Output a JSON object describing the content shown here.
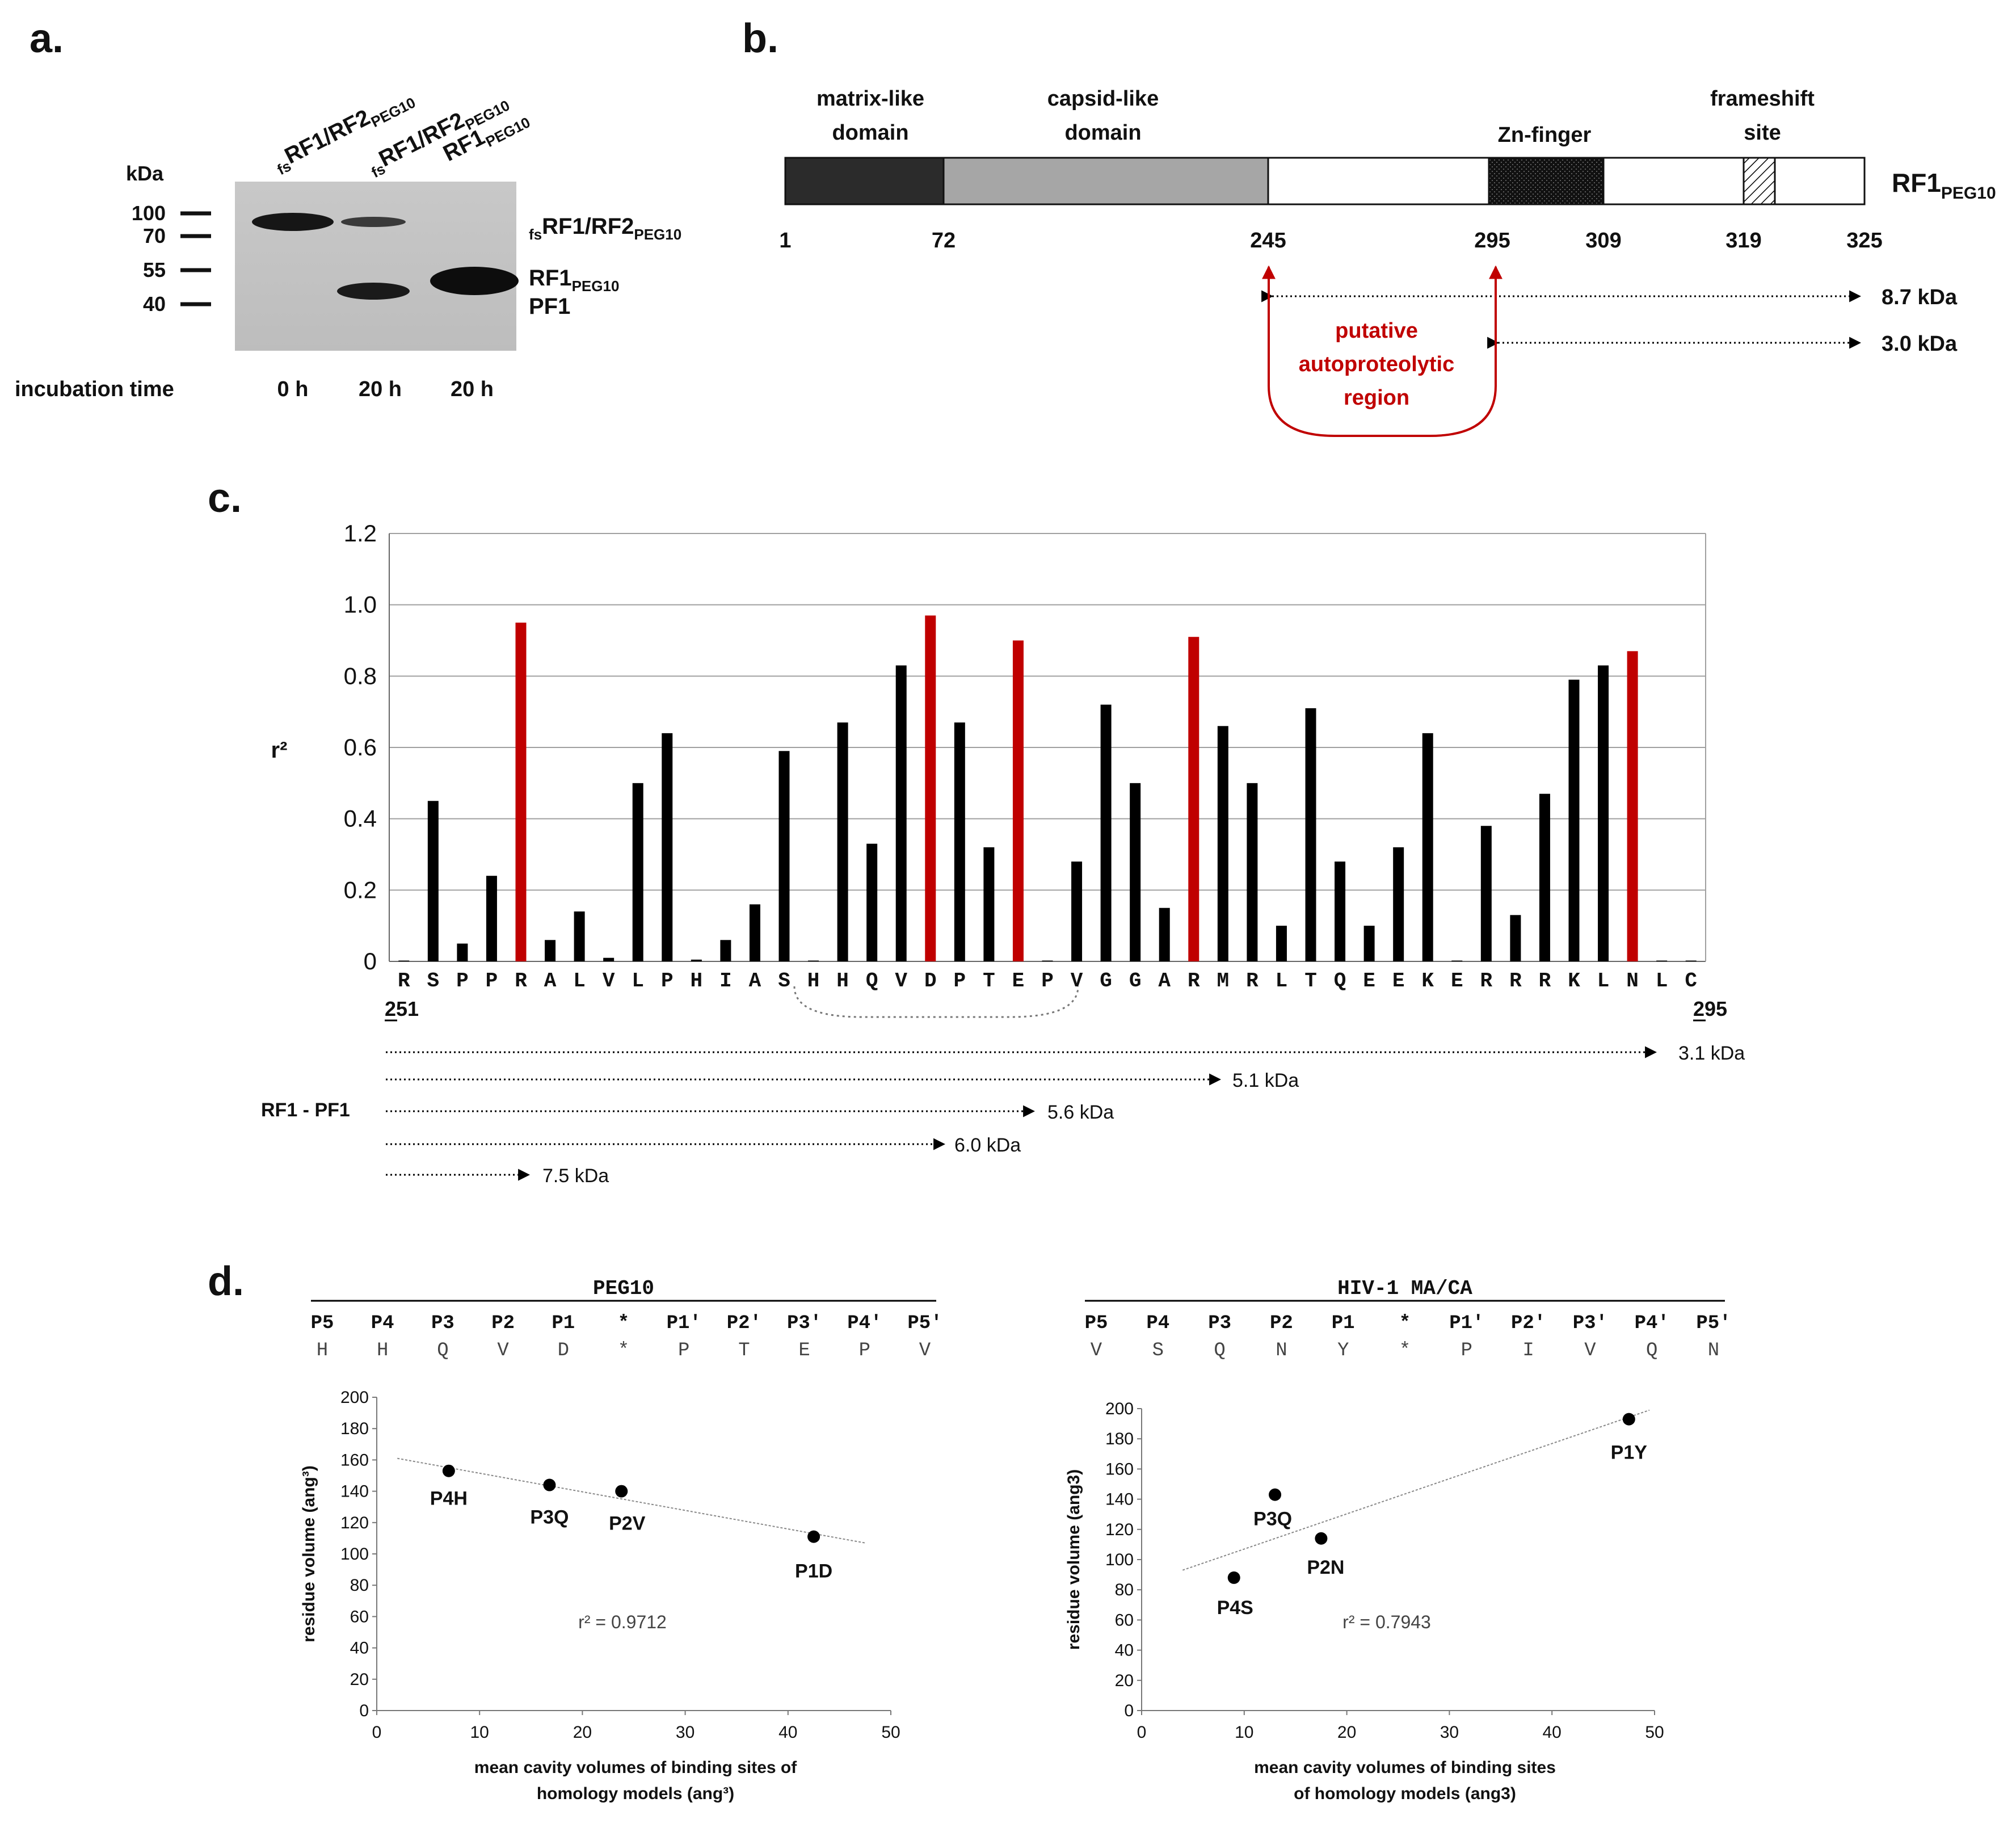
{
  "panel_a": {
    "label": "a.",
    "lanes": [
      {
        "label": "RF1/RF2",
        "pre": "fs",
        "sub": "PEG10"
      },
      {
        "label": "RF1/RF2",
        "pre": "fs",
        "sub": "PEG10"
      },
      {
        "label": "RF1",
        "pre": "",
        "sub": "PEG10"
      }
    ],
    "kda_label": "kDa",
    "markers": [
      "100",
      "70",
      "55",
      "40"
    ],
    "band_labels": [
      {
        "pre": "fs",
        "text": "RF1/RF2",
        "sub": "PEG10"
      },
      {
        "pre": "",
        "text": "RF1",
        "sub": "PEG10"
      },
      {
        "pre": "",
        "text": "PF1",
        "sub": ""
      }
    ],
    "incubation_label": "incubation time",
    "times": [
      "0 h",
      "20 h",
      "20 h"
    ]
  },
  "panel_b": {
    "label": "b.",
    "domains": [
      {
        "name_line1": "matrix-like",
        "name_line2": "domain"
      },
      {
        "name_line1": "capsid-like",
        "name_line2": "domain"
      },
      {
        "name_line1": "Zn-finger",
        "name_line2": ""
      },
      {
        "name_line1": "frameshift",
        "name_line2": "site"
      }
    ],
    "protein": {
      "text": "RF1",
      "sub": "PEG10"
    },
    "positions": [
      "1",
      "72",
      "245",
      "295",
      "309",
      "319",
      "325"
    ],
    "fragments": [
      "8.7 kDa",
      "3.0 kDa"
    ],
    "putative": [
      "putative",
      "autoproteolytic",
      "region"
    ],
    "colors": {
      "matrix": "#2b2b2b",
      "capsid": "#a6a6a6",
      "highlight": "#c00000"
    }
  },
  "panel_c": {
    "label": "c.",
    "start_label": "251",
    "end_label": "295",
    "rf_label": "RF1 - PF1",
    "fragments": [
      "3.1 kDa",
      "5.1 kDa",
      "5.6 kDa",
      "6.0 kDa",
      "7.5 kDa"
    ]
  },
  "chart_data": [
    {
      "type": "bar",
      "ylabel": "r²",
      "ylim": [
        0,
        1.2
      ],
      "yticks": [
        "0",
        "0.2",
        "0.4",
        "0.6",
        "0.8",
        "1.0",
        "1.2"
      ],
      "categories": [
        "R",
        "S",
        "P",
        "P",
        "R",
        "A",
        "L",
        "V",
        "L",
        "P",
        "H",
        "I",
        "A",
        "S",
        "H",
        "H",
        "Q",
        "V",
        "D",
        "P",
        "T",
        "E",
        "P",
        "V",
        "G",
        "G",
        "A",
        "R",
        "M",
        "R",
        "L",
        "T",
        "Q",
        "E",
        "E",
        "K",
        "E",
        "R",
        "R",
        "R",
        "K",
        "L",
        "N",
        "L",
        "C"
      ],
      "values": [
        0,
        0.45,
        0.05,
        0.24,
        0.95,
        0.06,
        0.14,
        0.01,
        0.5,
        0.64,
        0.005,
        0.06,
        0.16,
        0.59,
        0,
        0.67,
        0.33,
        0.83,
        0.97,
        0.67,
        0.32,
        0.9,
        0,
        0.28,
        0.72,
        0.5,
        0.15,
        0.91,
        0.66,
        0.5,
        0.1,
        0.71,
        0.28,
        0.1,
        0.32,
        0.64,
        0,
        0.38,
        0.13,
        0.47,
        0.79,
        0.83,
        0.87,
        0,
        0
      ],
      "highlight_indices": [
        4,
        18,
        21,
        27,
        42
      ],
      "colors": {
        "normal": "#000000",
        "highlight": "#c00000"
      }
    },
    {
      "type": "scatter",
      "title": "PEG10",
      "positions": [
        "P5",
        "P4",
        "P3",
        "P2",
        "P1",
        "*",
        "P1'",
        "P2'",
        "P3'",
        "P4'",
        "P5'"
      ],
      "residues": [
        "H",
        "H",
        "Q",
        "V",
        "D",
        "*",
        "P",
        "T",
        "E",
        "P",
        "V"
      ],
      "xlabel_line1": "mean cavity volumes of binding sites of",
      "xlabel_line2": "homology models (ang³)",
      "ylabel": "residue volume (ang³)",
      "xlim": [
        0,
        50
      ],
      "ylim": [
        0,
        200
      ],
      "xticks": [
        "0",
        "10",
        "20",
        "30",
        "40",
        "50"
      ],
      "yticks": [
        "0",
        "20",
        "40",
        "60",
        "80",
        "100",
        "120",
        "140",
        "160",
        "180",
        "200"
      ],
      "points": [
        {
          "label": "P4H",
          "x": 7,
          "y": 153
        },
        {
          "label": "P3Q",
          "x": 16.8,
          "y": 144
        },
        {
          "label": "P2V",
          "x": 23.8,
          "y": 140
        },
        {
          "label": "P1D",
          "x": 42.5,
          "y": 111
        }
      ],
      "fit": {
        "x1": 2,
        "y1": 161,
        "x2": 47.5,
        "y2": 107
      },
      "r2_label": "r² = 0.9712"
    },
    {
      "type": "scatter",
      "title": "HIV-1 MA/CA",
      "positions": [
        "P5",
        "P4",
        "P3",
        "P2",
        "P1",
        "*",
        "P1'",
        "P2'",
        "P3'",
        "P4'",
        "P5'"
      ],
      "residues": [
        "V",
        "S",
        "Q",
        "N",
        "Y",
        "*",
        "P",
        "I",
        "V",
        "Q",
        "N"
      ],
      "xlabel_line1": "mean cavity volumes of binding sites",
      "xlabel_line2": "of homology models (ang3)",
      "ylabel": "residue volume (ang3)",
      "xlim": [
        0,
        50
      ],
      "ylim": [
        0,
        200
      ],
      "xticks": [
        "0",
        "10",
        "20",
        "30",
        "40",
        "50"
      ],
      "yticks": [
        "0",
        "20",
        "40",
        "60",
        "80",
        "100",
        "120",
        "140",
        "160",
        "180",
        "200"
      ],
      "points": [
        {
          "label": "P4S",
          "x": 9,
          "y": 88
        },
        {
          "label": "P3Q",
          "x": 13,
          "y": 143
        },
        {
          "label": "P2N",
          "x": 17.5,
          "y": 114
        },
        {
          "label": "P1Y",
          "x": 47.5,
          "y": 193
        }
      ],
      "fit": {
        "x1": 4,
        "y1": 93,
        "x2": 49.5,
        "y2": 199
      },
      "r2_label": "r² = 0.7943"
    }
  ],
  "panel_d": {
    "label": "d."
  }
}
